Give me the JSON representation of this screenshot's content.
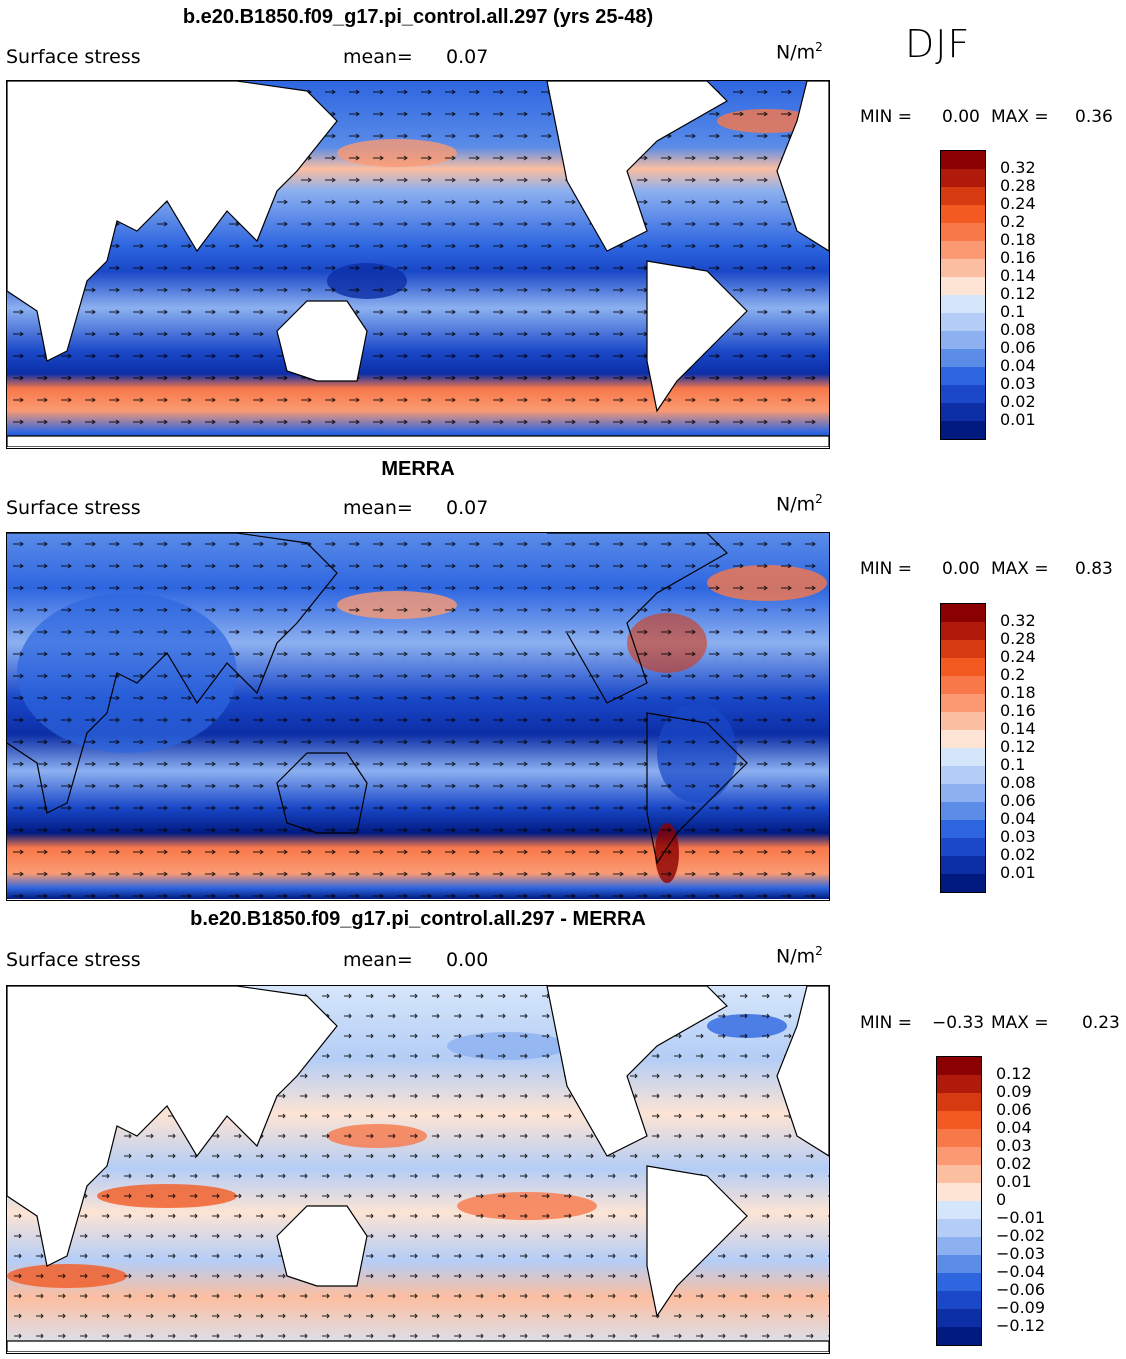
{
  "season": "DJF",
  "panels": [
    {
      "title": "b.e20.B1850.f09_g17.pi_control.all.297 (yrs 25-48)",
      "variable": "Surface stress",
      "mean_label": "mean=",
      "mean_value": "0.07",
      "unit": "N/m",
      "unit_exp": "2",
      "min_label": "MIN =",
      "min_value": "0.00",
      "max_label": "MAX =",
      "max_value": "0.36",
      "colorbar": {
        "ticks": [
          "0.32",
          "0.28",
          "0.24",
          "0.2",
          "0.18",
          "0.16",
          "0.14",
          "0.12",
          "0.1",
          "0.08",
          "0.06",
          "0.04",
          "0.03",
          "0.02",
          "0.01"
        ],
        "colors": [
          "#8b0000",
          "#b01a0a",
          "#d63a10",
          "#f25a22",
          "#f8784a",
          "#fb9a72",
          "#fcbea0",
          "#fde4d4",
          "#d6e6fa",
          "#b4cdf6",
          "#8cb0f0",
          "#5a8ce8",
          "#2e66e0",
          "#1a48c8",
          "#0c2ea6",
          "#001a80"
        ]
      }
    },
    {
      "title": "MERRA",
      "variable": "Surface stress",
      "mean_label": "mean=",
      "mean_value": "0.07",
      "unit": "N/m",
      "unit_exp": "2",
      "min_label": "MIN =",
      "min_value": "0.00",
      "max_label": "MAX =",
      "max_value": "0.83",
      "colorbar": {
        "ticks": [
          "0.32",
          "0.28",
          "0.24",
          "0.2",
          "0.18",
          "0.16",
          "0.14",
          "0.12",
          "0.1",
          "0.08",
          "0.06",
          "0.04",
          "0.03",
          "0.02",
          "0.01"
        ],
        "colors": [
          "#8b0000",
          "#b01a0a",
          "#d63a10",
          "#f25a22",
          "#f8784a",
          "#fb9a72",
          "#fcbea0",
          "#fde4d4",
          "#d6e6fa",
          "#b4cdf6",
          "#8cb0f0",
          "#5a8ce8",
          "#2e66e0",
          "#1a48c8",
          "#0c2ea6",
          "#001a80"
        ]
      }
    },
    {
      "title": "b.e20.B1850.f09_g17.pi_control.all.297 - MERRA",
      "variable": "Surface stress",
      "mean_label": "mean=",
      "mean_value": "0.00",
      "unit": "N/m",
      "unit_exp": "2",
      "min_label": "MIN =",
      "min_value": "−0.33",
      "max_label": "MAX =",
      "max_value": "0.23",
      "colorbar": {
        "ticks": [
          "0.12",
          "0.09",
          "0.06",
          "0.04",
          "0.03",
          "0.02",
          "0.01",
          "0",
          "−0.01",
          "−0.02",
          "−0.03",
          "−0.04",
          "−0.06",
          "−0.09",
          "−0.12"
        ],
        "colors": [
          "#8b0000",
          "#b01a0a",
          "#d63a10",
          "#f25a22",
          "#f8784a",
          "#fb9a72",
          "#fcbea0",
          "#fde4d4",
          "#d6e6fa",
          "#b4cdf6",
          "#8cb0f0",
          "#5a8ce8",
          "#2e66e0",
          "#1a48c8",
          "#0c2ea6",
          "#001a80"
        ]
      }
    }
  ]
}
